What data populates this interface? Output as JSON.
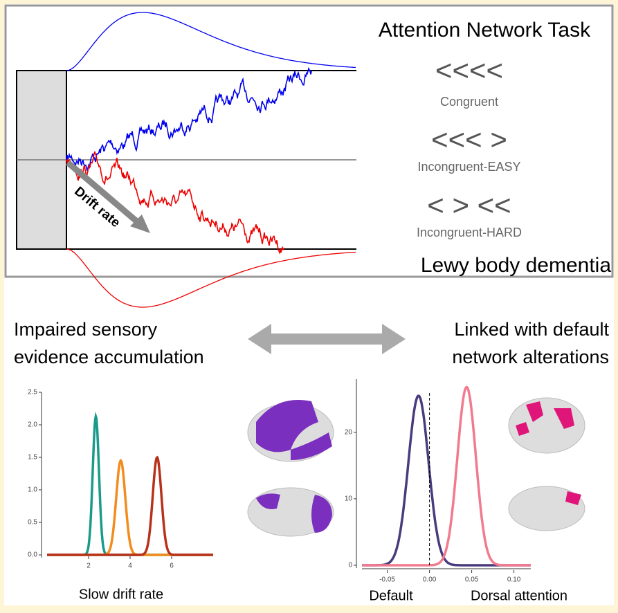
{
  "top": {
    "title": "Attention Network Task",
    "conditions": [
      {
        "symbols": "<<<<",
        "label": "Congruent"
      },
      {
        "symbols": "<<< >",
        "label": "Incongruent-EASY"
      },
      {
        "symbols": "< > <<",
        "label": "Incongruent-HARD"
      }
    ],
    "arrow_label": "Drift rate",
    "subtitle": "Lewy body dementia"
  },
  "bottom": {
    "left_heading": [
      "Impaired sensory",
      "evidence accumulation"
    ],
    "right_heading": [
      "Linked with default",
      "network alterations"
    ]
  },
  "drift_plot": {
    "xlabel": "Slow drift rate",
    "xlim": [
      0,
      8
    ],
    "ylim": [
      0,
      2.5
    ],
    "xticks": [
      2,
      4,
      6
    ],
    "yticks": [
      {
        "value": 0,
        "label": "0.0"
      },
      {
        "value": 0.5,
        "label": "0.5"
      },
      {
        "value": 1,
        "label": "1.0"
      },
      {
        "value": 1.5,
        "label": "1.5"
      },
      {
        "value": 2,
        "label": "2.0"
      },
      {
        "value": 2.5,
        "label": "2.5"
      }
    ],
    "curves": [
      {
        "color": "#1a9a8a",
        "peak_x": 2.35,
        "peak_y": 2.13,
        "sd": 0.15
      },
      {
        "color": "#f28c1c",
        "peak_x": 3.55,
        "peak_y": 1.45,
        "sd": 0.22
      },
      {
        "color": "#b8311a",
        "peak_x": 5.3,
        "peak_y": 1.5,
        "sd": 0.21
      }
    ]
  },
  "network_plot": {
    "xlim": [
      -0.08,
      0.12
    ],
    "ylim": [
      0,
      28
    ],
    "xticks": [
      -0.05,
      {
        "value": 0,
        "label": "0.00"
      },
      0.05,
      {
        "value": 0.1,
        "label": "0.10"
      }
    ],
    "yticks": [
      0,
      10,
      20
    ],
    "labels": [
      "Default",
      "Dorsal attention"
    ],
    "curves": [
      {
        "color": "#4a3b7d",
        "peak_x": -0.013,
        "peak_y": 25.5,
        "sd": 0.012
      },
      {
        "color": "#f17a8e",
        "peak_x": 0.044,
        "peak_y": 26.8,
        "sd": 0.011
      }
    ]
  }
}
